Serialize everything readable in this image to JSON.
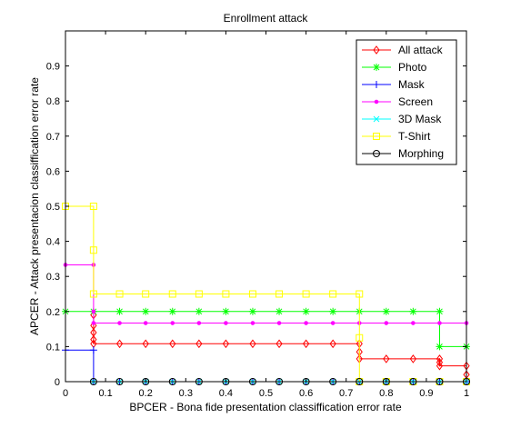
{
  "chart_data": {
    "type": "line",
    "title": "Enrollment attack",
    "xlabel": "BPCER - Bona fide presentation classiffication error rate",
    "ylabel": "APCER - Attack presentacion classiffication error rate",
    "xlim": [
      0,
      1
    ],
    "ylim": [
      0,
      1
    ],
    "xticks": [
      0,
      0.1,
      0.2,
      0.3,
      0.4,
      0.5,
      0.6,
      0.7,
      0.8,
      0.9,
      1
    ],
    "xtick_labels": [
      "0",
      "0.1",
      "0.2",
      "0.3",
      "0.4",
      "0.5",
      "0.6",
      "0.7",
      "0.8",
      "0.9",
      "1"
    ],
    "yticks": [
      0,
      0.1,
      0.2,
      0.3,
      0.4,
      0.5,
      0.6,
      0.7,
      0.8,
      0.9
    ],
    "ytick_labels": [
      "0",
      "0.1",
      "0.2",
      "0.3",
      "0.4",
      "0.5",
      "0.6",
      "0.7",
      "0.8",
      "0.9"
    ],
    "grid": false,
    "legend_position": "top-right",
    "series": [
      {
        "name": "All attack",
        "color": "#ff0000",
        "marker": "diamond",
        "x": [
          0.07,
          0.07,
          0.07,
          0.07,
          0.07,
          0.135,
          0.2,
          0.267,
          0.333,
          0.4,
          0.467,
          0.533,
          0.6,
          0.667,
          0.733,
          0.733,
          0.733,
          0.8,
          0.867,
          0.933,
          0.933,
          0.933,
          1,
          1
        ],
        "y": [
          0.19,
          0.16,
          0.14,
          0.12,
          0.108,
          0.108,
          0.108,
          0.108,
          0.108,
          0.108,
          0.108,
          0.108,
          0.108,
          0.108,
          0.108,
          0.085,
          0.065,
          0.065,
          0.065,
          0.065,
          0.055,
          0.045,
          0.045,
          0.02
        ]
      },
      {
        "name": "Photo",
        "color": "#00ff00",
        "marker": "star",
        "x": [
          0,
          0.07,
          0.135,
          0.2,
          0.267,
          0.333,
          0.4,
          0.467,
          0.533,
          0.6,
          0.667,
          0.733,
          0.8,
          0.867,
          0.933,
          0.933,
          1
        ],
        "y": [
          0.2,
          0.2,
          0.2,
          0.2,
          0.2,
          0.2,
          0.2,
          0.2,
          0.2,
          0.2,
          0.2,
          0.2,
          0.2,
          0.2,
          0.2,
          0.1,
          0.1
        ]
      },
      {
        "name": "Mask",
        "color": "#0000ff",
        "marker": "plus",
        "x": [
          0,
          0.07,
          0.07,
          0.135,
          0.2,
          0.267,
          0.333,
          0.4,
          0.467,
          0.533,
          0.6,
          0.667,
          0.733,
          0.8,
          0.867,
          0.933,
          1
        ],
        "y": [
          0.09,
          0.09,
          0,
          0,
          0,
          0,
          0,
          0,
          0,
          0,
          0,
          0,
          0,
          0,
          0,
          0,
          0
        ]
      },
      {
        "name": "Screen",
        "color": "#ff00ff",
        "marker": "dot",
        "x": [
          0,
          0.07,
          0.07,
          0.07,
          0.135,
          0.2,
          0.267,
          0.333,
          0.4,
          0.467,
          0.533,
          0.6,
          0.667,
          0.733,
          0.8,
          0.867,
          0.933,
          1
        ],
        "y": [
          0.333,
          0.333,
          0.2,
          0.167,
          0.167,
          0.167,
          0.167,
          0.167,
          0.167,
          0.167,
          0.167,
          0.167,
          0.167,
          0.167,
          0.167,
          0.167,
          0.167,
          0.167
        ]
      },
      {
        "name": "3D Mask",
        "color": "#00ffff",
        "marker": "x",
        "x": [
          0.07,
          0.135,
          0.2,
          0.267,
          0.333,
          0.4,
          0.467,
          0.533,
          0.6,
          0.667,
          0.733,
          0.8,
          0.867,
          0.933,
          1
        ],
        "y": [
          0,
          0,
          0,
          0,
          0,
          0,
          0,
          0,
          0,
          0,
          0,
          0,
          0,
          0,
          0
        ]
      },
      {
        "name": "T-Shirt",
        "color": "#ffff00",
        "marker": "square",
        "x": [
          0,
          0.07,
          0.07,
          0.07,
          0.135,
          0.2,
          0.267,
          0.333,
          0.4,
          0.467,
          0.533,
          0.6,
          0.667,
          0.733,
          0.733,
          0.733,
          0.8,
          0.867,
          0.933,
          1
        ],
        "y": [
          0.5,
          0.5,
          0.375,
          0.25,
          0.25,
          0.25,
          0.25,
          0.25,
          0.25,
          0.25,
          0.25,
          0.25,
          0.25,
          0.25,
          0.125,
          0,
          0,
          0,
          0,
          0
        ]
      },
      {
        "name": "Morphing",
        "color": "#000000",
        "marker": "circle",
        "x": [
          0.07,
          0.135,
          0.2,
          0.267,
          0.333,
          0.4,
          0.467,
          0.533,
          0.6,
          0.667,
          0.733,
          0.8,
          0.867,
          0.933,
          1
        ],
        "y": [
          0,
          0,
          0,
          0,
          0,
          0,
          0,
          0,
          0,
          0,
          0,
          0,
          0,
          0,
          0
        ]
      }
    ]
  }
}
